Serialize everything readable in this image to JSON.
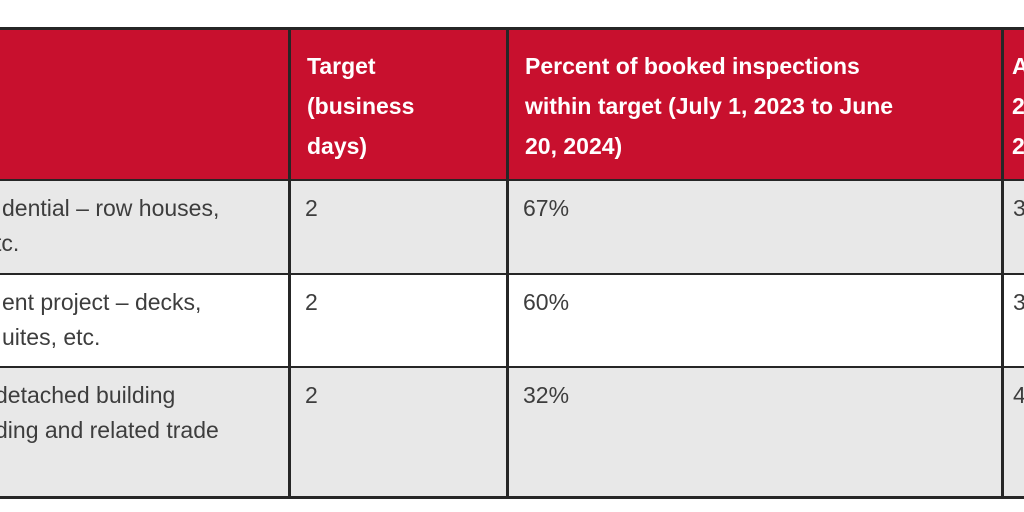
{
  "table": {
    "header": {
      "category_label": "",
      "target_lines": [
        "Target",
        "(business",
        "days)"
      ],
      "percent_lines": [
        "Percent of booked inspections",
        "within target (July 1, 2023 to June",
        "20, 2024)"
      ],
      "truncated_right_lines": [
        "A",
        "2",
        "2"
      ]
    },
    "rows": [
      {
        "category_line1": "dential – row houses,",
        "category_line2": "tc.",
        "target": "2",
        "percent": "67%",
        "right_truncated": "3"
      },
      {
        "category_line1": "ent project – decks,",
        "category_line2": "uites, etc.",
        "target": "2",
        "percent": "60%",
        "right_truncated": "3"
      },
      {
        "category_line1": "detached building",
        "category_line2": "ding and related trade",
        "target": "2",
        "percent": "32%",
        "right_truncated": "4"
      }
    ],
    "colors": {
      "header_bg": "#c8102e",
      "header_text": "#ffffff",
      "row_alt_bg": "#e8e8e8",
      "row_bg": "#ffffff",
      "border": "#262626",
      "body_text": "#3d3d3d"
    }
  }
}
